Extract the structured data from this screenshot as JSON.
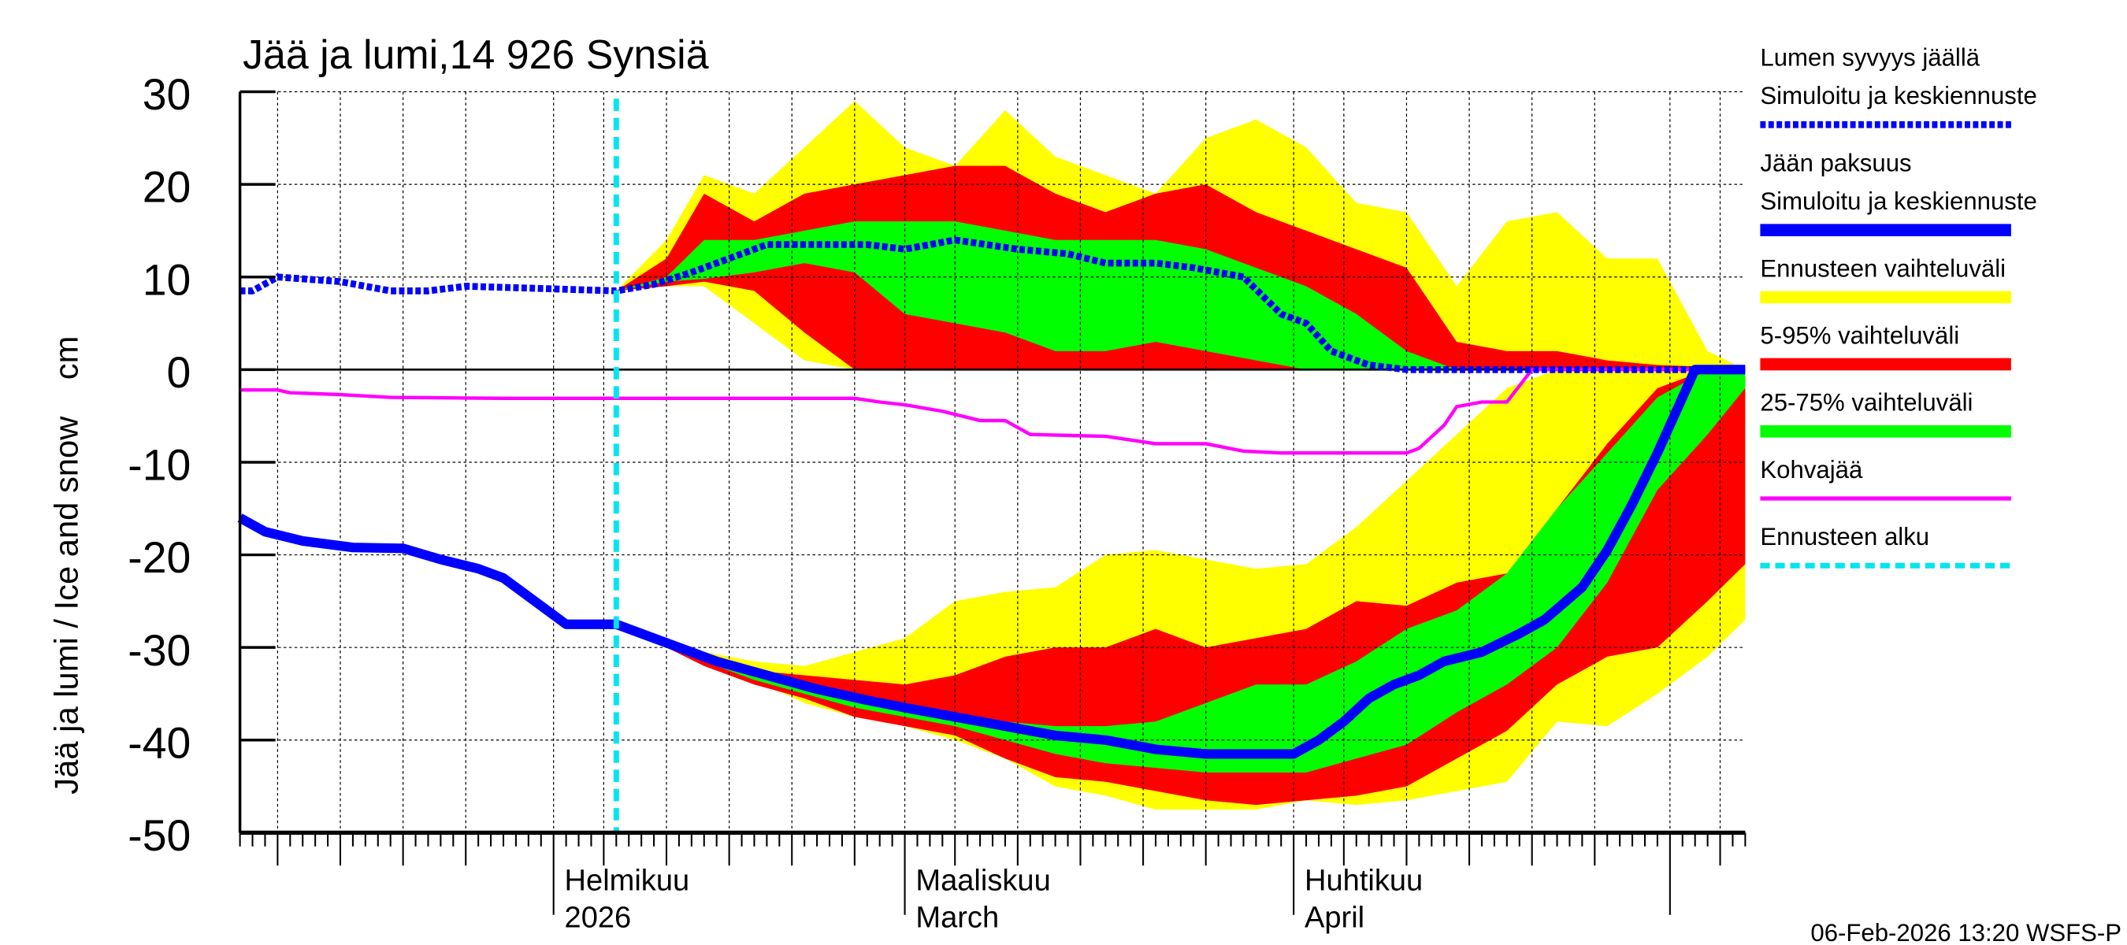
{
  "chart_data": {
    "type": "area",
    "title": "Jää ja lumi,14 926 Synsiä",
    "ylabel": "Jää ja lumi / Ice and snow    cm",
    "ylim": [
      -50,
      30
    ],
    "yticks": [
      30,
      20,
      10,
      0,
      -10,
      -20,
      -30,
      -40,
      -50
    ],
    "xlim": [
      "2026-01-07",
      "2026-05-07"
    ],
    "grid": true,
    "legend_position": "right",
    "month_labels": [
      {
        "date": "2026-02-01",
        "line1": "Helmikuu",
        "line2": "2026"
      },
      {
        "date": "2026-03-01",
        "line1": "Maaliskuu",
        "line2": "March"
      },
      {
        "date": "2026-04-01",
        "line1": "Huhtikuu",
        "line2": "April"
      }
    ],
    "forecast_start": "2026-02-06",
    "footer": "06-Feb-2026 13:20 WSFS-P",
    "legend": [
      {
        "label": "Lumen syvyys jäällä",
        "label2": "Simuloitu ja keskiennuste",
        "color": "#0000ff",
        "style": "dotted-thick"
      },
      {
        "label": "Jään paksuus",
        "label2": "Simuloitu ja keskiennuste",
        "color": "#0000ff",
        "style": "thick"
      },
      {
        "label": "Ennusteen vaihteluväli",
        "color": "#ffff00",
        "style": "band"
      },
      {
        "label": "5-95% vaihteluväli",
        "color": "#ff0000",
        "style": "band"
      },
      {
        "label": "25-75% vaihteluväli",
        "color": "#00ff00",
        "style": "band"
      },
      {
        "label": "Kohvajää",
        "color": "#ff00ff",
        "style": "line"
      },
      {
        "label": "Ennusteen alku",
        "color": "#00e5ee",
        "style": "dashed"
      }
    ],
    "band_dates": [
      "2026-02-06",
      "2026-02-10",
      "2026-02-13",
      "2026-02-17",
      "2026-02-21",
      "2026-02-25",
      "2026-03-01",
      "2026-03-05",
      "2026-03-09",
      "2026-03-13",
      "2026-03-17",
      "2026-03-21",
      "2026-03-25",
      "2026-03-29",
      "2026-04-02",
      "2026-04-06",
      "2026-04-10",
      "2026-04-14",
      "2026-04-18",
      "2026-04-22",
      "2026-04-26",
      "2026-04-30",
      "2026-05-04",
      "2026-05-07"
    ],
    "snow_bands": {
      "range": {
        "upper": [
          8.5,
          14,
          21,
          19,
          24,
          29,
          24,
          22,
          28,
          23,
          21,
          19,
          25,
          27,
          24,
          18,
          17,
          9,
          16,
          17,
          12,
          12,
          2,
          0
        ],
        "lower": [
          8.5,
          9,
          9,
          5,
          1,
          0,
          0,
          0,
          0,
          0,
          0,
          0,
          0,
          0,
          0,
          0,
          0,
          0,
          0,
          0,
          0,
          0,
          0,
          0
        ]
      },
      "p5_95": {
        "upper": [
          8.5,
          12,
          19,
          16,
          19,
          20,
          21,
          22,
          22,
          19,
          17,
          19,
          20,
          17,
          15,
          13,
          11,
          3,
          2,
          2,
          1,
          0.5,
          0.3,
          0
        ],
        "lower": [
          8.5,
          9,
          9.5,
          8.5,
          4,
          0,
          0,
          0,
          0,
          0,
          0,
          0,
          0,
          0,
          0,
          0,
          0,
          0,
          0,
          0,
          0,
          0,
          0,
          0
        ]
      },
      "p25_75": {
        "upper": [
          8.5,
          10,
          14,
          14,
          15,
          16,
          16,
          16,
          15,
          14,
          14,
          14,
          13,
          11,
          9,
          6,
          2,
          0,
          0,
          0,
          0,
          0,
          0,
          0
        ],
        "lower": [
          8.5,
          9.5,
          9.8,
          10.5,
          11.5,
          10.5,
          6,
          5,
          4,
          2,
          2,
          3,
          2,
          1,
          0,
          0,
          0,
          0,
          0,
          0,
          0,
          0,
          0,
          0
        ]
      }
    },
    "ice_bands": {
      "range": {
        "upper": [
          -27.5,
          -29,
          -30.5,
          -31.5,
          -32,
          -30.5,
          -29,
          -25,
          -24,
          -23.5,
          -20,
          -19.5,
          -20.5,
          -21.5,
          -21,
          -17,
          -12,
          -7,
          -2,
          0,
          0,
          0,
          0,
          0
        ],
        "lower": [
          -27.5,
          -30,
          -31.5,
          -33.5,
          -36,
          -37.5,
          -38.5,
          -40,
          -42,
          -45,
          -46,
          -47.5,
          -47.5,
          -47.5,
          -46.5,
          -47,
          -46.5,
          -45.5,
          -44.5,
          -38,
          -38.5,
          -35,
          -31,
          -27
        ]
      },
      "p5_95": {
        "upper": [
          -27.5,
          -29,
          -31,
          -32.5,
          -33,
          -33.5,
          -34,
          -33,
          -31,
          -30,
          -30,
          -28,
          -30,
          -29,
          -28,
          -25,
          -25.5,
          -23,
          -22,
          -15,
          -8,
          -2,
          0,
          0
        ],
        "lower": [
          -27.5,
          -30,
          -32,
          -34,
          -35.5,
          -37.5,
          -38.5,
          -39.5,
          -42,
          -44,
          -44.5,
          -45.5,
          -46.5,
          -47,
          -46.5,
          -46,
          -45,
          -42,
          -39,
          -34,
          -31,
          -30,
          -25,
          -21
        ]
      },
      "p25_75": {
        "upper": [
          -27.5,
          -29,
          -31,
          -32.5,
          -34,
          -35,
          -36,
          -37,
          -38,
          -38.5,
          -38.5,
          -38,
          -36,
          -34,
          -34,
          -31.5,
          -28,
          -26,
          -22,
          -15,
          -9,
          -3,
          0,
          0
        ],
        "lower": [
          -27.5,
          -29.5,
          -31.5,
          -33.5,
          -35,
          -36.5,
          -37.5,
          -38.5,
          -40,
          -41.5,
          -42.5,
          -43,
          -43.5,
          -43.5,
          -43.5,
          -42,
          -40.5,
          -37,
          -34,
          -30,
          -23,
          -13,
          -7,
          -2
        ]
      }
    },
    "series": [
      {
        "name": "Lumen syvyys jäällä",
        "color": "#0000ff",
        "x": [
          "2026-01-07",
          "2026-01-08",
          "2026-01-10",
          "2026-01-12",
          "2026-01-15",
          "2026-01-19",
          "2026-01-22",
          "2026-01-25",
          "2026-01-30",
          "2026-02-06",
          "2026-02-09",
          "2026-02-12",
          "2026-02-15",
          "2026-02-18",
          "2026-02-22",
          "2026-02-26",
          "2026-03-01",
          "2026-03-05",
          "2026-03-10",
          "2026-03-14",
          "2026-03-17",
          "2026-03-21",
          "2026-03-24",
          "2026-03-28",
          "2026-03-31",
          "2026-04-02",
          "2026-04-04",
          "2026-04-07",
          "2026-04-10",
          "2026-05-07"
        ],
        "y": [
          8.5,
          8.5,
          10,
          9.8,
          9.5,
          8.5,
          8.5,
          9,
          8.8,
          8.5,
          9.2,
          10.5,
          12,
          13.5,
          13.5,
          13.5,
          13,
          14,
          13,
          12.5,
          11.5,
          11.5,
          11,
          10,
          6,
          5,
          2,
          0.5,
          0,
          0
        ]
      },
      {
        "name": "Jään paksuus",
        "color": "#0000ff",
        "x": [
          "2026-01-07",
          "2026-01-09",
          "2026-01-12",
          "2026-01-16",
          "2026-01-20",
          "2026-01-23",
          "2026-01-26",
          "2026-01-28",
          "2026-01-31",
          "2026-02-02",
          "2026-02-06",
          "2026-02-10",
          "2026-02-14",
          "2026-02-18",
          "2026-02-22",
          "2026-02-26",
          "2026-03-01",
          "2026-03-05",
          "2026-03-09",
          "2026-03-13",
          "2026-03-17",
          "2026-03-21",
          "2026-03-25",
          "2026-03-29",
          "2026-04-01",
          "2026-04-03",
          "2026-04-05",
          "2026-04-07",
          "2026-04-09",
          "2026-04-11",
          "2026-04-13",
          "2026-04-16",
          "2026-04-19",
          "2026-04-21",
          "2026-04-24",
          "2026-04-26",
          "2026-04-28",
          "2026-04-30",
          "2026-05-02",
          "2026-05-03",
          "2026-05-07"
        ],
        "y": [
          -16,
          -17.5,
          -18.5,
          -19.2,
          -19.3,
          -20.5,
          -21.5,
          -22.5,
          -25.5,
          -27.5,
          -27.5,
          -29.5,
          -31.5,
          -33,
          -34.5,
          -35.7,
          -36.5,
          -37.5,
          -38.5,
          -39.5,
          -40,
          -41,
          -41.5,
          -41.5,
          -41.5,
          -40,
          -38,
          -35.5,
          -34,
          -33,
          -31.5,
          -30.5,
          -28.5,
          -27,
          -23.5,
          -19.5,
          -14.5,
          -9,
          -3,
          0,
          0
        ]
      },
      {
        "name": "Kohvajää",
        "color": "#ff00ff",
        "x": [
          "2026-01-07",
          "2026-01-10",
          "2026-01-11",
          "2026-01-15",
          "2026-01-19",
          "2026-01-28",
          "2026-02-25",
          "2026-02-27",
          "2026-03-01",
          "2026-03-04",
          "2026-03-07",
          "2026-03-09",
          "2026-03-11",
          "2026-03-17",
          "2026-03-21",
          "2026-03-25",
          "2026-03-28",
          "2026-03-31",
          "2026-04-10",
          "2026-04-11",
          "2026-04-13",
          "2026-04-14",
          "2026-04-16",
          "2026-04-18",
          "2026-04-20",
          "2026-05-07"
        ],
        "y": [
          -2.2,
          -2.2,
          -2.5,
          -2.7,
          -3,
          -3.1,
          -3.1,
          -3.5,
          -3.8,
          -4.5,
          -5.5,
          -5.5,
          -7,
          -7.2,
          -8,
          -8,
          -8.8,
          -9,
          -9,
          -8.5,
          -6,
          -4,
          -3.5,
          -3.5,
          0,
          0
        ]
      }
    ]
  }
}
